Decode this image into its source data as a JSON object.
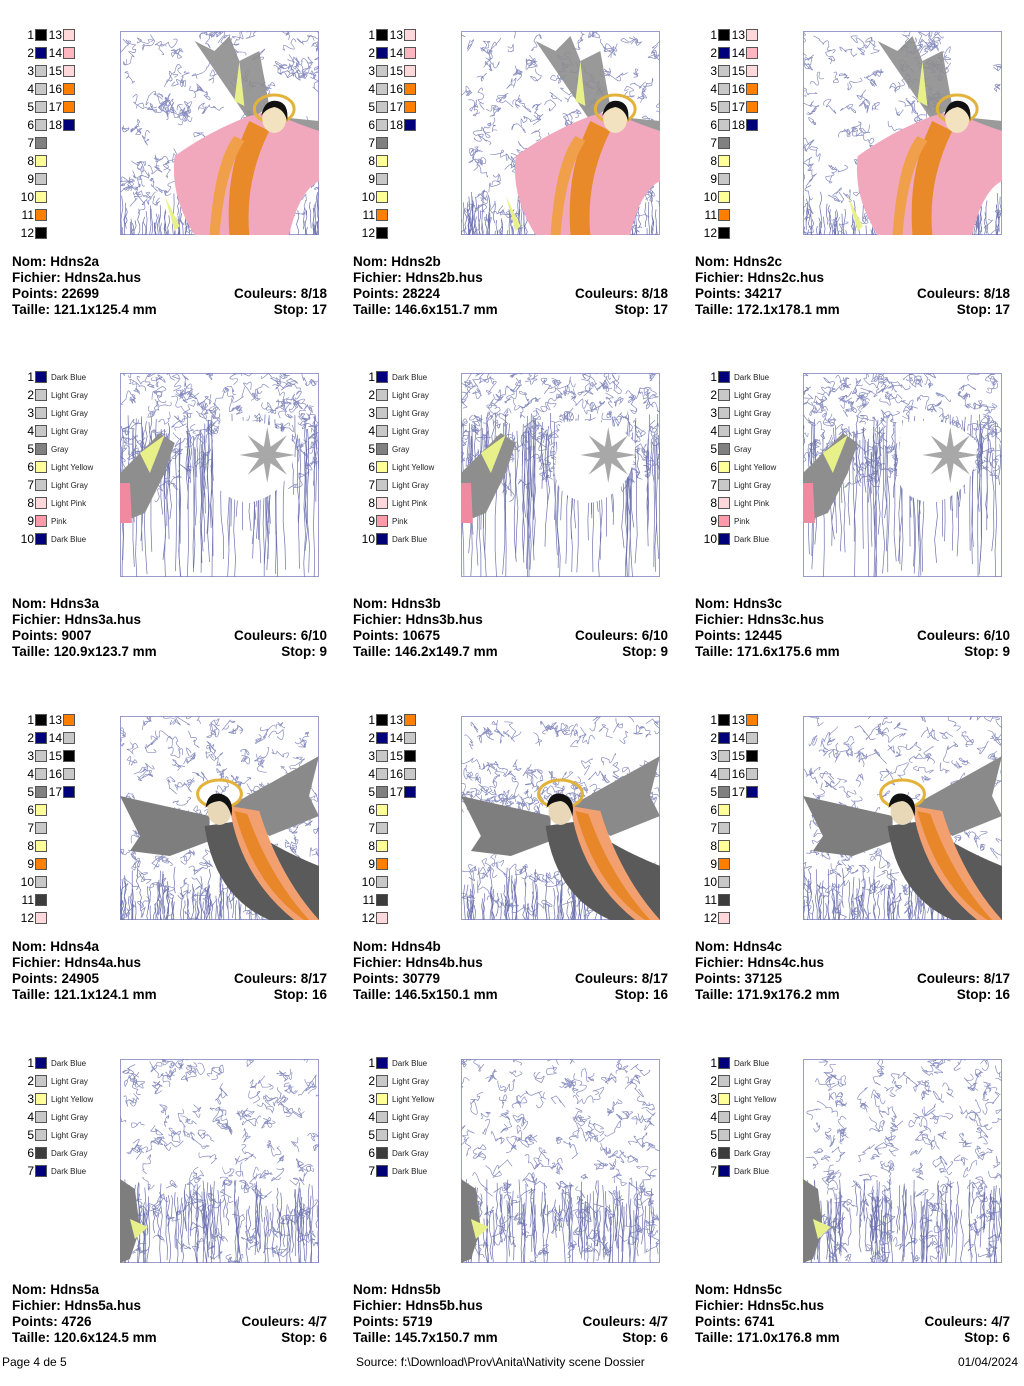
{
  "labels": {
    "nom": "Nom:",
    "fichier": "Fichier:",
    "points": "Points:",
    "taille": "Taille:",
    "couleurs": "Couleurs:",
    "stop": "Stop:"
  },
  "colors": {
    "black": "#000000",
    "dark_blue": "#00007a",
    "light_gray": "#c8c8c8",
    "pink_light": "#ffd8dc",
    "orange": "#ff8000",
    "gray": "#808080",
    "light_yellow": "#ffff99",
    "pink": "#ff9aa8",
    "dark_gray": "#3c3c3c"
  },
  "footer": {
    "page": "Page 4 de 5",
    "source": "Source: f:\\Download\\Prov\\Anita\\Nativity scene Dossier",
    "date": "01/04/2024"
  },
  "designs": [
    {
      "nom": "Hdns2a",
      "fichier": "Hdns2a.hus",
      "points": "22699",
      "couleurs": "8/18",
      "taille": "121.1x125.4 mm",
      "stop": "17",
      "art": "angel2",
      "legend": {
        "type": "boxes",
        "items": [
          {
            "n": "1",
            "c": "#000000"
          },
          {
            "n": "2",
            "c": "#00007a"
          },
          {
            "n": "3",
            "c": "#c8c8c8"
          },
          {
            "n": "4",
            "c": "#c8c8c8"
          },
          {
            "n": "5",
            "c": "#c8c8c8"
          },
          {
            "n": "6",
            "c": "#c8c8c8"
          },
          {
            "n": "7",
            "c": "#808080"
          },
          {
            "n": "8",
            "c": "#ffff99"
          },
          {
            "n": "9",
            "c": "#c8c8c8"
          },
          {
            "n": "10",
            "c": "#ffff99"
          },
          {
            "n": "11",
            "c": "#ff8000"
          },
          {
            "n": "12",
            "c": "#000000"
          },
          {
            "n": "13",
            "c": "#ffd8dc"
          },
          {
            "n": "14",
            "c": "#ffb6c1"
          },
          {
            "n": "15",
            "c": "#ffd8dc"
          },
          {
            "n": "16",
            "c": "#ff8000"
          },
          {
            "n": "17",
            "c": "#ff8000"
          },
          {
            "n": "18",
            "c": "#00007a"
          }
        ]
      }
    },
    {
      "nom": "Hdns2b",
      "fichier": "Hdns2b.hus",
      "points": "28224",
      "couleurs": "8/18",
      "taille": "146.6x151.7 mm",
      "stop": "17",
      "art": "angel2",
      "legend": {
        "type": "boxes",
        "items": [
          {
            "n": "1",
            "c": "#000000"
          },
          {
            "n": "2",
            "c": "#00007a"
          },
          {
            "n": "3",
            "c": "#c8c8c8"
          },
          {
            "n": "4",
            "c": "#c8c8c8"
          },
          {
            "n": "5",
            "c": "#c8c8c8"
          },
          {
            "n": "6",
            "c": "#c8c8c8"
          },
          {
            "n": "7",
            "c": "#808080"
          },
          {
            "n": "8",
            "c": "#ffff99"
          },
          {
            "n": "9",
            "c": "#c8c8c8"
          },
          {
            "n": "10",
            "c": "#ffff99"
          },
          {
            "n": "11",
            "c": "#ff8000"
          },
          {
            "n": "12",
            "c": "#000000"
          },
          {
            "n": "13",
            "c": "#ffd8dc"
          },
          {
            "n": "14",
            "c": "#ffb6c1"
          },
          {
            "n": "15",
            "c": "#ffd8dc"
          },
          {
            "n": "16",
            "c": "#ff8000"
          },
          {
            "n": "17",
            "c": "#ff8000"
          },
          {
            "n": "18",
            "c": "#00007a"
          }
        ]
      }
    },
    {
      "nom": "Hdns2c",
      "fichier": "Hdns2c.hus",
      "points": "34217",
      "couleurs": "8/18",
      "taille": "172.1x178.1 mm",
      "stop": "17",
      "art": "angel2",
      "legend": {
        "type": "boxes",
        "items": [
          {
            "n": "1",
            "c": "#000000"
          },
          {
            "n": "2",
            "c": "#00007a"
          },
          {
            "n": "3",
            "c": "#c8c8c8"
          },
          {
            "n": "4",
            "c": "#c8c8c8"
          },
          {
            "n": "5",
            "c": "#c8c8c8"
          },
          {
            "n": "6",
            "c": "#c8c8c8"
          },
          {
            "n": "7",
            "c": "#808080"
          },
          {
            "n": "8",
            "c": "#ffff99"
          },
          {
            "n": "9",
            "c": "#c8c8c8"
          },
          {
            "n": "10",
            "c": "#ffff99"
          },
          {
            "n": "11",
            "c": "#ff8000"
          },
          {
            "n": "12",
            "c": "#000000"
          },
          {
            "n": "13",
            "c": "#ffd8dc"
          },
          {
            "n": "14",
            "c": "#ffb6c1"
          },
          {
            "n": "15",
            "c": "#ffd8dc"
          },
          {
            "n": "16",
            "c": "#ff8000"
          },
          {
            "n": "17",
            "c": "#ff8000"
          },
          {
            "n": "18",
            "c": "#00007a"
          }
        ]
      }
    },
    {
      "nom": "Hdns3a",
      "fichier": "Hdns3a.hus",
      "points": "9007",
      "couleurs": "6/10",
      "taille": "120.9x123.7 mm",
      "stop": "9",
      "art": "star",
      "legend": {
        "type": "named",
        "items": [
          {
            "n": "1",
            "c": "#00007a",
            "name": "Dark Blue"
          },
          {
            "n": "2",
            "c": "#c8c8c8",
            "name": "Light Gray"
          },
          {
            "n": "3",
            "c": "#c8c8c8",
            "name": "Light Gray"
          },
          {
            "n": "4",
            "c": "#c8c8c8",
            "name": "Light Gray"
          },
          {
            "n": "5",
            "c": "#808080",
            "name": "Gray"
          },
          {
            "n": "6",
            "c": "#ffff99",
            "name": "Light Yellow"
          },
          {
            "n": "7",
            "c": "#c8c8c8",
            "name": "Light Gray"
          },
          {
            "n": "8",
            "c": "#ffd8dc",
            "name": "Light Pink"
          },
          {
            "n": "9",
            "c": "#ff9aa8",
            "name": "Pink"
          },
          {
            "n": "10",
            "c": "#00007a",
            "name": "Dark Blue"
          }
        ]
      }
    },
    {
      "nom": "Hdns3b",
      "fichier": "Hdns3b.hus",
      "points": "10675",
      "couleurs": "6/10",
      "taille": "146.2x149.7 mm",
      "stop": "9",
      "art": "star",
      "legend": {
        "type": "named",
        "items": [
          {
            "n": "1",
            "c": "#00007a",
            "name": "Dark Blue"
          },
          {
            "n": "2",
            "c": "#c8c8c8",
            "name": "Light Gray"
          },
          {
            "n": "3",
            "c": "#c8c8c8",
            "name": "Light Gray"
          },
          {
            "n": "4",
            "c": "#c8c8c8",
            "name": "Light Gray"
          },
          {
            "n": "5",
            "c": "#808080",
            "name": "Gray"
          },
          {
            "n": "6",
            "c": "#ffff99",
            "name": "Light Yellow"
          },
          {
            "n": "7",
            "c": "#c8c8c8",
            "name": "Light Gray"
          },
          {
            "n": "8",
            "c": "#ffd8dc",
            "name": "Light Pink"
          },
          {
            "n": "9",
            "c": "#ff9aa8",
            "name": "Pink"
          },
          {
            "n": "10",
            "c": "#00007a",
            "name": "Dark Blue"
          }
        ]
      }
    },
    {
      "nom": "Hdns3c",
      "fichier": "Hdns3c.hus",
      "points": "12445",
      "couleurs": "6/10",
      "taille": "171.6x175.6 mm",
      "stop": "9",
      "art": "star",
      "legend": {
        "type": "named",
        "items": [
          {
            "n": "1",
            "c": "#00007a",
            "name": "Dark Blue"
          },
          {
            "n": "2",
            "c": "#c8c8c8",
            "name": "Light Gray"
          },
          {
            "n": "3",
            "c": "#c8c8c8",
            "name": "Light Gray"
          },
          {
            "n": "4",
            "c": "#c8c8c8",
            "name": "Light Gray"
          },
          {
            "n": "5",
            "c": "#808080",
            "name": "Gray"
          },
          {
            "n": "6",
            "c": "#ffff99",
            "name": "Light Yellow"
          },
          {
            "n": "7",
            "c": "#c8c8c8",
            "name": "Light Gray"
          },
          {
            "n": "8",
            "c": "#ffd8dc",
            "name": "Light Pink"
          },
          {
            "n": "9",
            "c": "#ff9aa8",
            "name": "Pink"
          },
          {
            "n": "10",
            "c": "#00007a",
            "name": "Dark Blue"
          }
        ]
      }
    },
    {
      "nom": "Hdns4a",
      "fichier": "Hdns4a.hus",
      "points": "24905",
      "couleurs": "8/17",
      "taille": "121.1x124.1 mm",
      "stop": "16",
      "art": "angel4",
      "legend": {
        "type": "boxes",
        "items": [
          {
            "n": "1",
            "c": "#000000"
          },
          {
            "n": "2",
            "c": "#00007a"
          },
          {
            "n": "3",
            "c": "#c8c8c8"
          },
          {
            "n": "4",
            "c": "#c8c8c8"
          },
          {
            "n": "5",
            "c": "#808080"
          },
          {
            "n": "6",
            "c": "#ffff99"
          },
          {
            "n": "7",
            "c": "#c8c8c8"
          },
          {
            "n": "8",
            "c": "#ffff99"
          },
          {
            "n": "9",
            "c": "#ff8000"
          },
          {
            "n": "10",
            "c": "#c8c8c8"
          },
          {
            "n": "11",
            "c": "#3c3c3c"
          },
          {
            "n": "12",
            "c": "#ffd8dc"
          },
          {
            "n": "13",
            "c": "#ff8000"
          },
          {
            "n": "14",
            "c": "#c8c8c8"
          },
          {
            "n": "15",
            "c": "#000000"
          },
          {
            "n": "16",
            "c": "#c8c8c8"
          },
          {
            "n": "17",
            "c": "#00007a"
          }
        ]
      }
    },
    {
      "nom": "Hdns4b",
      "fichier": "Hdns4b.hus",
      "points": "30779",
      "couleurs": "8/17",
      "taille": "146.5x150.1 mm",
      "stop": "16",
      "art": "angel4",
      "legend": {
        "type": "boxes",
        "items": [
          {
            "n": "1",
            "c": "#000000"
          },
          {
            "n": "2",
            "c": "#00007a"
          },
          {
            "n": "3",
            "c": "#c8c8c8"
          },
          {
            "n": "4",
            "c": "#c8c8c8"
          },
          {
            "n": "5",
            "c": "#808080"
          },
          {
            "n": "6",
            "c": "#ffff99"
          },
          {
            "n": "7",
            "c": "#c8c8c8"
          },
          {
            "n": "8",
            "c": "#ffff99"
          },
          {
            "n": "9",
            "c": "#ff8000"
          },
          {
            "n": "10",
            "c": "#c8c8c8"
          },
          {
            "n": "11",
            "c": "#3c3c3c"
          },
          {
            "n": "12",
            "c": "#ffd8dc"
          },
          {
            "n": "13",
            "c": "#ff8000"
          },
          {
            "n": "14",
            "c": "#c8c8c8"
          },
          {
            "n": "15",
            "c": "#000000"
          },
          {
            "n": "16",
            "c": "#c8c8c8"
          },
          {
            "n": "17",
            "c": "#00007a"
          }
        ]
      }
    },
    {
      "nom": "Hdns4c",
      "fichier": "Hdns4c.hus",
      "points": "37125",
      "couleurs": "8/17",
      "taille": "171.9x176.2 mm",
      "stop": "16",
      "art": "angel4",
      "legend": {
        "type": "boxes",
        "items": [
          {
            "n": "1",
            "c": "#000000"
          },
          {
            "n": "2",
            "c": "#00007a"
          },
          {
            "n": "3",
            "c": "#c8c8c8"
          },
          {
            "n": "4",
            "c": "#c8c8c8"
          },
          {
            "n": "5",
            "c": "#808080"
          },
          {
            "n": "6",
            "c": "#ffff99"
          },
          {
            "n": "7",
            "c": "#c8c8c8"
          },
          {
            "n": "8",
            "c": "#ffff99"
          },
          {
            "n": "9",
            "c": "#ff8000"
          },
          {
            "n": "10",
            "c": "#c8c8c8"
          },
          {
            "n": "11",
            "c": "#3c3c3c"
          },
          {
            "n": "12",
            "c": "#ffd8dc"
          },
          {
            "n": "13",
            "c": "#ff8000"
          },
          {
            "n": "14",
            "c": "#c8c8c8"
          },
          {
            "n": "15",
            "c": "#000000"
          },
          {
            "n": "16",
            "c": "#c8c8c8"
          },
          {
            "n": "17",
            "c": "#00007a"
          }
        ]
      }
    },
    {
      "nom": "Hdns5a",
      "fichier": "Hdns5a.hus",
      "points": "4726",
      "couleurs": "4/7",
      "taille": "120.6x124.5 mm",
      "stop": "6",
      "art": "plain",
      "legend": {
        "type": "named",
        "items": [
          {
            "n": "1",
            "c": "#00007a",
            "name": "Dark Blue"
          },
          {
            "n": "2",
            "c": "#c8c8c8",
            "name": "Light Gray"
          },
          {
            "n": "3",
            "c": "#ffff99",
            "name": "Light Yellow"
          },
          {
            "n": "4",
            "c": "#c8c8c8",
            "name": "Light Gray"
          },
          {
            "n": "5",
            "c": "#c8c8c8",
            "name": "Light Gray"
          },
          {
            "n": "6",
            "c": "#3c3c3c",
            "name": "Dark Gray"
          },
          {
            "n": "7",
            "c": "#00007a",
            "name": "Dark Blue"
          }
        ]
      }
    },
    {
      "nom": "Hdns5b",
      "fichier": "Hdns5b.hus",
      "points": "5719",
      "couleurs": "4/7",
      "taille": "145.7x150.7 mm",
      "stop": "6",
      "art": "plain",
      "legend": {
        "type": "named",
        "items": [
          {
            "n": "1",
            "c": "#00007a",
            "name": "Dark Blue"
          },
          {
            "n": "2",
            "c": "#c8c8c8",
            "name": "Light Gray"
          },
          {
            "n": "3",
            "c": "#ffff99",
            "name": "Light Yellow"
          },
          {
            "n": "4",
            "c": "#c8c8c8",
            "name": "Light Gray"
          },
          {
            "n": "5",
            "c": "#c8c8c8",
            "name": "Light Gray"
          },
          {
            "n": "6",
            "c": "#3c3c3c",
            "name": "Dark Gray"
          },
          {
            "n": "7",
            "c": "#00007a",
            "name": "Dark Blue"
          }
        ]
      }
    },
    {
      "nom": "Hdns5c",
      "fichier": "Hdns5c.hus",
      "points": "6741",
      "couleurs": "4/7",
      "taille": "171.0x176.8 mm",
      "stop": "6",
      "art": "plain",
      "legend": {
        "type": "named",
        "items": [
          {
            "n": "1",
            "c": "#00007a",
            "name": "Dark Blue"
          },
          {
            "n": "2",
            "c": "#c8c8c8",
            "name": "Light Gray"
          },
          {
            "n": "3",
            "c": "#ffff99",
            "name": "Light Yellow"
          },
          {
            "n": "4",
            "c": "#c8c8c8",
            "name": "Light Gray"
          },
          {
            "n": "5",
            "c": "#c8c8c8",
            "name": "Light Gray"
          },
          {
            "n": "6",
            "c": "#3c3c3c",
            "name": "Dark Gray"
          },
          {
            "n": "7",
            "c": "#00007a",
            "name": "Dark Blue"
          }
        ]
      }
    }
  ]
}
